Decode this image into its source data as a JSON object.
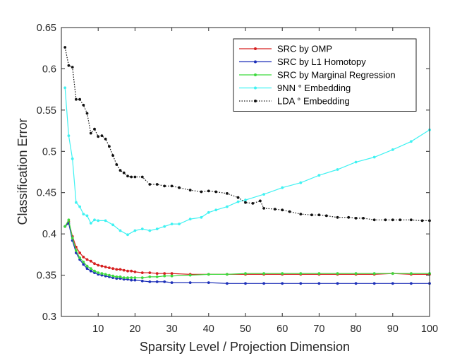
{
  "chart_data": {
    "type": "line",
    "xlabel": "Sparsity Level / Projection Dimension",
    "ylabel": "Classification Error",
    "xlim": [
      0,
      100
    ],
    "ylim": [
      0.3,
      0.65
    ],
    "xticks": [
      10,
      20,
      30,
      40,
      50,
      60,
      70,
      80,
      90,
      100
    ],
    "yticks": [
      0.3,
      0.35,
      0.4,
      0.45,
      0.5,
      0.55,
      0.6,
      0.65
    ],
    "grid": false,
    "legend_position": "top-right",
    "series": [
      {
        "name": "SRC by OMP",
        "color": "#d62020",
        "style": "solid",
        "x": [
          1,
          2,
          3,
          4,
          5,
          6,
          7,
          8,
          9,
          10,
          11,
          12,
          13,
          14,
          15,
          16,
          17,
          18,
          19,
          20,
          22,
          24,
          26,
          28,
          30,
          35,
          40,
          45,
          50,
          55,
          60,
          65,
          70,
          75,
          80,
          85,
          90,
          95,
          100
        ],
        "y": [
          0.409,
          0.415,
          0.397,
          0.384,
          0.377,
          0.372,
          0.369,
          0.367,
          0.364,
          0.362,
          0.361,
          0.36,
          0.359,
          0.358,
          0.357,
          0.357,
          0.356,
          0.355,
          0.355,
          0.354,
          0.353,
          0.353,
          0.352,
          0.352,
          0.352,
          0.351,
          0.351,
          0.351,
          0.351,
          0.351,
          0.351,
          0.351,
          0.351,
          0.351,
          0.351,
          0.351,
          0.352,
          0.351,
          0.351
        ]
      },
      {
        "name": "SRC by L1 Homotopy",
        "color": "#1c2fb8",
        "style": "solid",
        "x": [
          1,
          2,
          3,
          4,
          5,
          6,
          7,
          8,
          9,
          10,
          11,
          12,
          13,
          14,
          15,
          16,
          17,
          18,
          19,
          20,
          22,
          24,
          26,
          28,
          30,
          35,
          40,
          45,
          50,
          55,
          60,
          65,
          70,
          75,
          80,
          85,
          90,
          95,
          100
        ],
        "y": [
          0.409,
          0.413,
          0.392,
          0.377,
          0.369,
          0.363,
          0.358,
          0.355,
          0.353,
          0.351,
          0.35,
          0.349,
          0.348,
          0.347,
          0.346,
          0.346,
          0.345,
          0.345,
          0.344,
          0.344,
          0.343,
          0.342,
          0.342,
          0.342,
          0.341,
          0.341,
          0.341,
          0.34,
          0.34,
          0.34,
          0.34,
          0.34,
          0.34,
          0.34,
          0.34,
          0.34,
          0.34,
          0.34,
          0.34
        ]
      },
      {
        "name": "SRC by Marginal Regression",
        "color": "#3ed93e",
        "style": "solid",
        "x": [
          1,
          2,
          3,
          4,
          5,
          6,
          7,
          8,
          9,
          10,
          11,
          12,
          13,
          14,
          15,
          16,
          17,
          18,
          19,
          20,
          22,
          24,
          26,
          28,
          30,
          35,
          40,
          45,
          50,
          55,
          60,
          65,
          70,
          75,
          80,
          85,
          90,
          95,
          100
        ],
        "y": [
          0.409,
          0.417,
          0.395,
          0.38,
          0.371,
          0.366,
          0.361,
          0.358,
          0.355,
          0.353,
          0.352,
          0.351,
          0.35,
          0.349,
          0.348,
          0.348,
          0.347,
          0.347,
          0.347,
          0.347,
          0.347,
          0.348,
          0.348,
          0.349,
          0.349,
          0.35,
          0.351,
          0.351,
          0.352,
          0.352,
          0.352,
          0.352,
          0.352,
          0.352,
          0.352,
          0.352,
          0.352,
          0.352,
          0.352
        ]
      },
      {
        "name": "9NN ° Embedding",
        "color": "#3ff2f2",
        "style": "solid",
        "x": [
          1,
          2,
          3,
          4,
          5,
          6,
          7,
          8,
          9,
          10,
          12,
          14,
          16,
          18,
          20,
          22,
          24,
          26,
          28,
          30,
          32,
          35,
          38,
          40,
          42,
          45,
          48,
          50,
          55,
          60,
          65,
          70,
          75,
          80,
          85,
          90,
          95,
          100
        ],
        "y": [
          0.577,
          0.519,
          0.491,
          0.438,
          0.433,
          0.424,
          0.422,
          0.413,
          0.417,
          0.416,
          0.416,
          0.411,
          0.404,
          0.399,
          0.404,
          0.406,
          0.404,
          0.406,
          0.409,
          0.412,
          0.412,
          0.418,
          0.42,
          0.426,
          0.429,
          0.433,
          0.439,
          0.441,
          0.448,
          0.456,
          0.462,
          0.471,
          0.478,
          0.487,
          0.493,
          0.502,
          0.512,
          0.526
        ]
      },
      {
        "name": "LDA ° Embedding",
        "color": "#111111",
        "style": "dotted",
        "x": [
          1,
          2,
          3,
          4,
          5,
          6,
          7,
          8,
          9,
          10,
          11,
          12,
          13,
          14,
          15,
          16,
          17,
          18,
          19,
          20,
          22,
          24,
          26,
          28,
          30,
          32,
          35,
          38,
          40,
          42,
          45,
          48,
          50,
          52,
          54,
          55,
          58,
          60,
          62,
          65,
          68,
          70,
          72,
          75,
          78,
          80,
          82,
          85,
          88,
          90,
          92,
          95,
          98,
          100
        ],
        "y": [
          0.626,
          0.604,
          0.602,
          0.563,
          0.563,
          0.556,
          0.546,
          0.522,
          0.527,
          0.518,
          0.519,
          0.515,
          0.506,
          0.495,
          0.484,
          0.477,
          0.474,
          0.47,
          0.469,
          0.469,
          0.469,
          0.46,
          0.46,
          0.458,
          0.458,
          0.456,
          0.453,
          0.451,
          0.452,
          0.451,
          0.449,
          0.444,
          0.438,
          0.437,
          0.44,
          0.431,
          0.43,
          0.429,
          0.427,
          0.424,
          0.423,
          0.423,
          0.422,
          0.42,
          0.42,
          0.419,
          0.419,
          0.417,
          0.417,
          0.417,
          0.417,
          0.417,
          0.416,
          0.416
        ]
      }
    ]
  }
}
